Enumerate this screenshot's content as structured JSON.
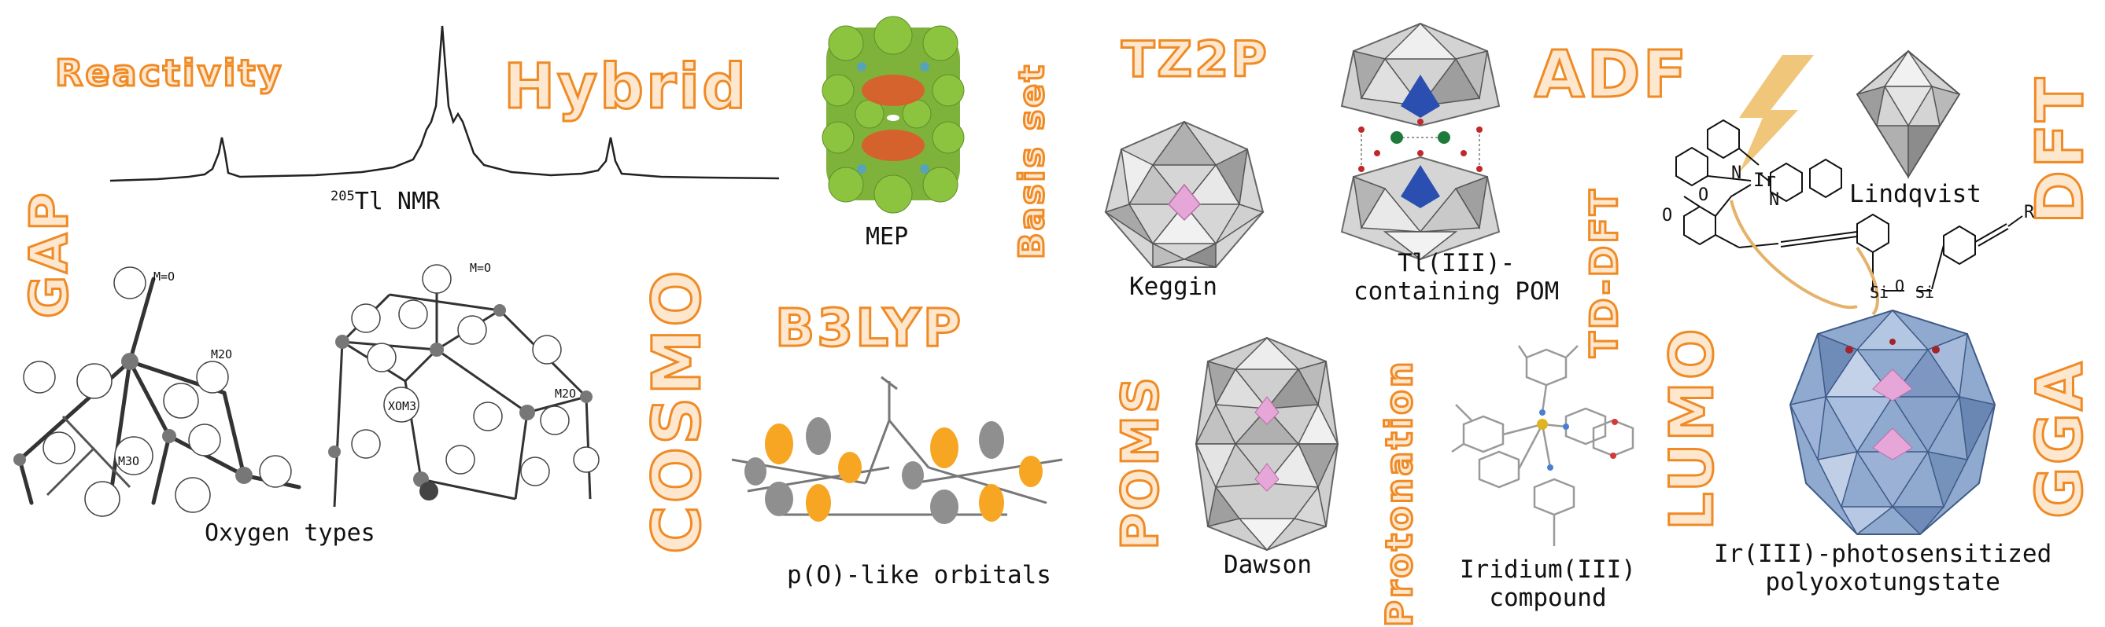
{
  "keywords": {
    "reactivity": "Reactivity",
    "hybrid": "Hybrid",
    "gap": "GAP",
    "cosmo": "COSMO",
    "basis_set": "Basis set",
    "b3lyp": "B3LYP",
    "tz2p": "TZ2P",
    "adf": "ADF",
    "poms": "POMS",
    "protonation": "Protonation",
    "td_dft": "TD-DFT",
    "lumo": "LUMO",
    "dft": "DFT",
    "gga": "GGA"
  },
  "captions": {
    "nmr_prefix": "205",
    "nmr": "Tl NMR",
    "oxygen_types": "Oxygen types",
    "mep": "MEP",
    "p_orbitals": "p(O)-like orbitals",
    "keggin": "Keggin",
    "tl_pom_line1": "Tl(III)-",
    "tl_pom_line2": "containing POM",
    "dawson": "Dawson",
    "iridium_line1": "Iridium(III)",
    "iridium_line2": "compound",
    "lindqvist": "Lindqvist",
    "ir_pom_line1": "Ir(III)-photosensitized",
    "ir_pom_line2": "polyoxotungstate"
  },
  "oxygen_labels": {
    "left_m_o": "M=O",
    "left_m2o": "M2O",
    "left_m3o": "M3O",
    "right_m_o": "M=O",
    "right_xom3": "XOM3",
    "right_m2o": "M2O"
  },
  "molecule_labels": {
    "ir": "Ir",
    "n1": "N",
    "n2": "N",
    "o1": "O",
    "o2": "O",
    "si1": "Si",
    "si2": "Si",
    "o_bridge": "O",
    "r": "R"
  },
  "colors": {
    "keyword_fill": "#fde7cf",
    "keyword_stroke": "#f08a24",
    "polyhedra_gray": "#b9b9b9",
    "polyhedra_blue": "#8fa9cf",
    "pink": "#e6a6d8",
    "mep_green": "#7fb23a",
    "orbital_orange": "#f6a623"
  }
}
